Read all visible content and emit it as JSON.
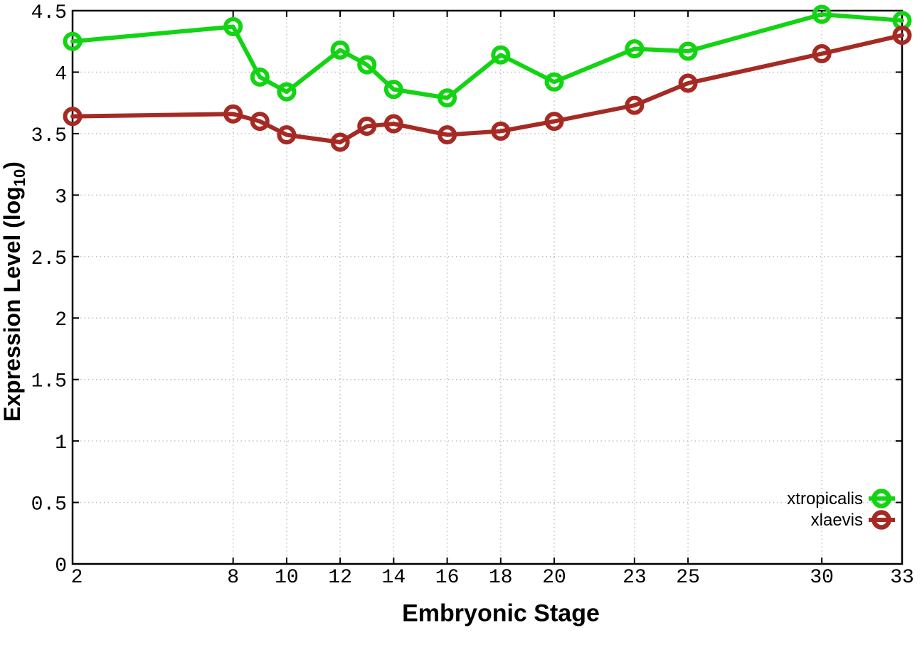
{
  "chart_data": {
    "type": "line",
    "title": "",
    "xlabel": "Embryonic Stage",
    "ylabel": "Expression Level (log10)",
    "ylabel_parts": {
      "main": "Expression Level (log",
      "sub": "10",
      "end": ")"
    },
    "xlim": [
      2,
      33
    ],
    "ylim": [
      0,
      4.5
    ],
    "x_ticks": [
      2,
      8,
      10,
      12,
      14,
      16,
      18,
      20,
      23,
      25,
      30,
      33
    ],
    "x_tick_labels": [
      "2",
      "8",
      "10",
      "12",
      "14",
      "16",
      "18",
      "20",
      "23",
      "25",
      "30",
      "33"
    ],
    "y_ticks": [
      0,
      0.5,
      1,
      1.5,
      2,
      2.5,
      3,
      3.5,
      4,
      4.5
    ],
    "y_tick_labels": [
      "0",
      "0.5",
      "1",
      "1.5",
      "2",
      "2.5",
      "3",
      "3.5",
      "4",
      "4.5"
    ],
    "grid": true,
    "legend_position": "inside-bottom-right",
    "x": [
      2,
      8,
      9,
      10,
      12,
      13,
      14,
      16,
      18,
      20,
      23,
      25,
      30,
      33
    ],
    "series": [
      {
        "name": "xtropicalis",
        "color": "#12d412",
        "values": [
          4.25,
          4.37,
          3.96,
          3.84,
          4.18,
          4.06,
          3.86,
          3.79,
          4.14,
          3.92,
          4.19,
          4.17,
          4.47,
          4.42
        ]
      },
      {
        "name": "xlaevis",
        "color": "#a62a24",
        "values": [
          3.64,
          3.66,
          3.6,
          3.49,
          3.43,
          3.56,
          3.58,
          3.49,
          3.52,
          3.6,
          3.73,
          3.91,
          4.15,
          4.3
        ]
      }
    ],
    "colors": {
      "axis": "#000000",
      "grid": "#bdbdbd",
      "background": "#ffffff"
    }
  }
}
